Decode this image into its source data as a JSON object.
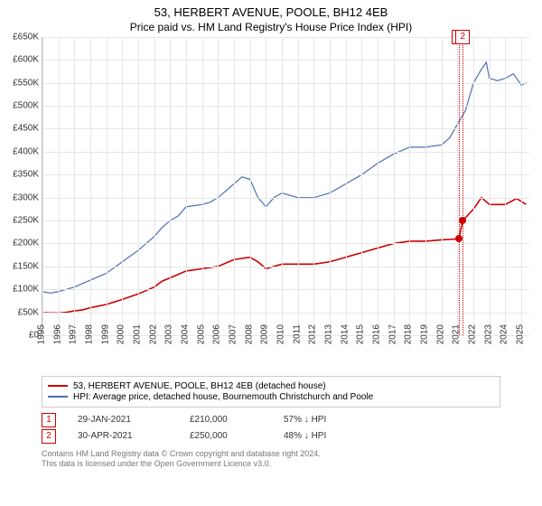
{
  "title": "53, HERBERT AVENUE, POOLE, BH12 4EB",
  "subtitle": "Price paid vs. HM Land Registry's House Price Index (HPI)",
  "chart": {
    "type": "line",
    "background_color": "#ffffff",
    "grid_color": "#e6e6e6",
    "axis_color": "#bbbbbb",
    "text_color": "#333333",
    "title_fontsize": 13,
    "label_fontsize": 10,
    "x": {
      "min": 1995,
      "max": 2025.5,
      "ticks": [
        1995,
        1996,
        1997,
        1998,
        1999,
        2000,
        2001,
        2002,
        2003,
        2004,
        2005,
        2006,
        2007,
        2008,
        2009,
        2010,
        2011,
        2012,
        2013,
        2014,
        2015,
        2016,
        2017,
        2018,
        2019,
        2020,
        2021,
        2022,
        2023,
        2024,
        2025
      ]
    },
    "y": {
      "min": 0,
      "max": 650000,
      "ticks": [
        0,
        50000,
        100000,
        150000,
        200000,
        250000,
        300000,
        350000,
        400000,
        450000,
        500000,
        550000,
        600000,
        650000
      ],
      "tick_labels": [
        "£0",
        "£50K",
        "£100K",
        "£150K",
        "£200K",
        "£250K",
        "£300K",
        "£350K",
        "£400K",
        "£450K",
        "£500K",
        "£550K",
        "£600K",
        "£650K"
      ]
    },
    "series": [
      {
        "name": "53, HERBERT AVENUE, POOLE, BH12 4EB (detached house)",
        "color": "#cc0000",
        "line_width": 1.6,
        "data": [
          [
            1995,
            49000
          ],
          [
            1996,
            48500
          ],
          [
            1996.5,
            50000
          ],
          [
            1997,
            53000
          ],
          [
            1997.5,
            55000
          ],
          [
            1998,
            60000
          ],
          [
            1999,
            67000
          ],
          [
            2000,
            78000
          ],
          [
            2001,
            90000
          ],
          [
            2002,
            105000
          ],
          [
            2002.5,
            118000
          ],
          [
            2003,
            125000
          ],
          [
            2004,
            140000
          ],
          [
            2005,
            145000
          ],
          [
            2006,
            150000
          ],
          [
            2007,
            165000
          ],
          [
            2008,
            170000
          ],
          [
            2008.5,
            160000
          ],
          [
            2009,
            145000
          ],
          [
            2010,
            155000
          ],
          [
            2011,
            155000
          ],
          [
            2012,
            155000
          ],
          [
            2013,
            160000
          ],
          [
            2014,
            170000
          ],
          [
            2015,
            180000
          ],
          [
            2016,
            190000
          ],
          [
            2017,
            200000
          ],
          [
            2018,
            205000
          ],
          [
            2019,
            205000
          ],
          [
            2020,
            208000
          ],
          [
            2021.08,
            210000
          ],
          [
            2021.33,
            250000
          ],
          [
            2022,
            275000
          ],
          [
            2022.5,
            300000
          ],
          [
            2023,
            285000
          ],
          [
            2024,
            285000
          ],
          [
            2024.7,
            298000
          ],
          [
            2025.3,
            285000
          ]
        ]
      },
      {
        "name": "HPI: Average price, detached house, Bournemouth Christchurch and Poole",
        "color": "#4a6fb3",
        "line_width": 1.2,
        "data": [
          [
            1995,
            95000
          ],
          [
            1995.5,
            92000
          ],
          [
            1996,
            95000
          ],
          [
            1997,
            105000
          ],
          [
            1998,
            120000
          ],
          [
            1999,
            135000
          ],
          [
            2000,
            160000
          ],
          [
            2001,
            185000
          ],
          [
            2002,
            215000
          ],
          [
            2002.5,
            235000
          ],
          [
            2003,
            250000
          ],
          [
            2003.5,
            260000
          ],
          [
            2004,
            280000
          ],
          [
            2005,
            285000
          ],
          [
            2005.5,
            290000
          ],
          [
            2006,
            300000
          ],
          [
            2007,
            330000
          ],
          [
            2007.5,
            345000
          ],
          [
            2008,
            340000
          ],
          [
            2008.5,
            300000
          ],
          [
            2009,
            280000
          ],
          [
            2009.5,
            300000
          ],
          [
            2010,
            310000
          ],
          [
            2010.5,
            305000
          ],
          [
            2011,
            300000
          ],
          [
            2012,
            300000
          ],
          [
            2013,
            310000
          ],
          [
            2014,
            330000
          ],
          [
            2015,
            350000
          ],
          [
            2016,
            375000
          ],
          [
            2017,
            395000
          ],
          [
            2018,
            410000
          ],
          [
            2019,
            410000
          ],
          [
            2020,
            415000
          ],
          [
            2020.5,
            430000
          ],
          [
            2021,
            460000
          ],
          [
            2021.5,
            490000
          ],
          [
            2022,
            550000
          ],
          [
            2022.5,
            580000
          ],
          [
            2022.8,
            595000
          ],
          [
            2023,
            560000
          ],
          [
            2023.5,
            555000
          ],
          [
            2024,
            560000
          ],
          [
            2024.5,
            570000
          ],
          [
            2025,
            545000
          ],
          [
            2025.3,
            550000
          ]
        ]
      }
    ],
    "sale_markers": [
      {
        "n": "1",
        "x": 2021.08,
        "y": 210000,
        "color": "#cc0000"
      },
      {
        "n": "2",
        "x": 2021.33,
        "y": 250000,
        "color": "#cc0000"
      }
    ]
  },
  "legend": [
    {
      "color": "#cc0000",
      "label": "53, HERBERT AVENUE, POOLE, BH12 4EB (detached house)"
    },
    {
      "color": "#4a6fb3",
      "label": "HPI: Average price, detached house, Bournemouth Christchurch and Poole"
    }
  ],
  "sales": [
    {
      "n": "1",
      "color": "#cc0000",
      "date": "29-JAN-2021",
      "price": "£210,000",
      "diff": "57% ↓ HPI"
    },
    {
      "n": "2",
      "color": "#cc0000",
      "date": "30-APR-2021",
      "price": "£250,000",
      "diff": "48% ↓ HPI"
    }
  ],
  "footer": {
    "line1": "Contains HM Land Registry data © Crown copyright and database right 2024.",
    "line2": "This data is licensed under the Open Government Licence v3.0."
  }
}
